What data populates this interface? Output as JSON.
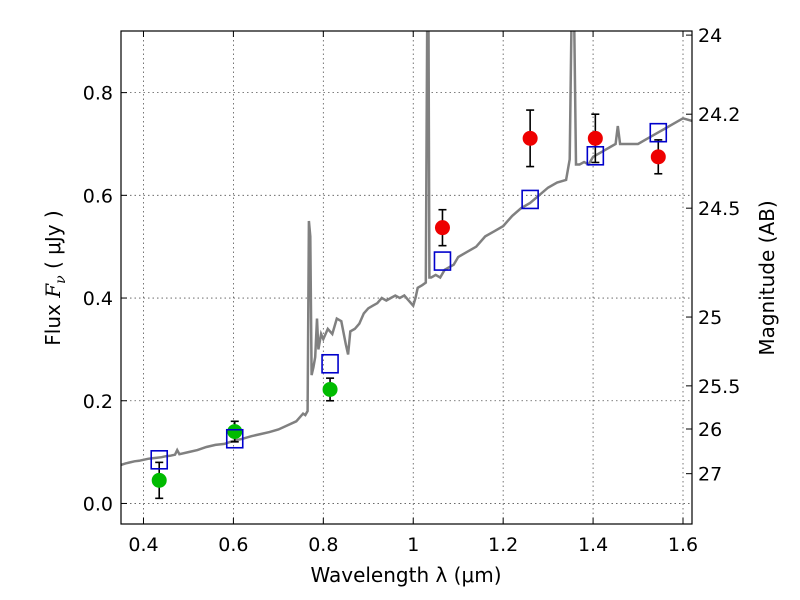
{
  "chart_data": {
    "type": "scatter",
    "xlabel": "Wavelength  λ (μm)",
    "ylabel_parts": [
      "Flux  ",
      "F",
      "ν",
      "  ( μJy )"
    ],
    "y2label": "Magnitude (AB)",
    "xlim": [
      0.35,
      1.62
    ],
    "ylim": [
      -0.04,
      0.92
    ],
    "grid": true,
    "x_ticks": [
      0.4,
      0.6,
      0.8,
      1.0,
      1.2,
      1.4,
      1.6
    ],
    "x_tick_labels": [
      "0.4",
      "0.6",
      "0.8",
      "1",
      "1.2",
      "1.4",
      "1.6"
    ],
    "y_ticks": [
      0.0,
      0.2,
      0.4,
      0.6,
      0.8
    ],
    "y_tick_labels": [
      "0.0",
      "0.2",
      "0.4",
      "0.6",
      "0.8"
    ],
    "mag_ticks": [
      {
        "label": "24",
        "flux": 0.912
      },
      {
        "label": "24.2",
        "flux": 0.758
      },
      {
        "label": "24.5",
        "flux": 0.575
      },
      {
        "label": "25",
        "flux": 0.363
      },
      {
        "label": "25.5",
        "flux": 0.229
      },
      {
        "label": "26",
        "flux": 0.145
      },
      {
        "label": "27",
        "flux": 0.058
      }
    ],
    "colors": {
      "model": "#808080",
      "box": "#0000cc",
      "green": "#00bb00",
      "red": "#ee0000",
      "errorbar": "#000000",
      "grid": "#555555"
    },
    "model_spectrum": [
      [
        0.35,
        0.075
      ],
      [
        0.36,
        0.078
      ],
      [
        0.37,
        0.08
      ],
      [
        0.38,
        0.082
      ],
      [
        0.39,
        0.083
      ],
      [
        0.4,
        0.085
      ],
      [
        0.41,
        0.087
      ],
      [
        0.42,
        0.088
      ],
      [
        0.43,
        0.089
      ],
      [
        0.44,
        0.09
      ],
      [
        0.45,
        0.092
      ],
      [
        0.46,
        0.093
      ],
      [
        0.47,
        0.095
      ],
      [
        0.475,
        0.104
      ],
      [
        0.48,
        0.096
      ],
      [
        0.5,
        0.1
      ],
      [
        0.52,
        0.104
      ],
      [
        0.54,
        0.11
      ],
      [
        0.56,
        0.114
      ],
      [
        0.58,
        0.116
      ],
      [
        0.6,
        0.122
      ],
      [
        0.62,
        0.126
      ],
      [
        0.64,
        0.131
      ],
      [
        0.66,
        0.135
      ],
      [
        0.68,
        0.139
      ],
      [
        0.7,
        0.144
      ],
      [
        0.72,
        0.152
      ],
      [
        0.74,
        0.16
      ],
      [
        0.75,
        0.17
      ],
      [
        0.755,
        0.175
      ],
      [
        0.76,
        0.172
      ],
      [
        0.765,
        0.18
      ],
      [
        0.768,
        0.55
      ],
      [
        0.771,
        0.52
      ],
      [
        0.774,
        0.25
      ],
      [
        0.778,
        0.265
      ],
      [
        0.782,
        0.285
      ],
      [
        0.786,
        0.36
      ],
      [
        0.789,
        0.3
      ],
      [
        0.795,
        0.33
      ],
      [
        0.8,
        0.32
      ],
      [
        0.81,
        0.34
      ],
      [
        0.82,
        0.33
      ],
      [
        0.83,
        0.36
      ],
      [
        0.84,
        0.355
      ],
      [
        0.85,
        0.31
      ],
      [
        0.855,
        0.29
      ],
      [
        0.86,
        0.335
      ],
      [
        0.87,
        0.34
      ],
      [
        0.88,
        0.35
      ],
      [
        0.89,
        0.37
      ],
      [
        0.9,
        0.38
      ],
      [
        0.91,
        0.385
      ],
      [
        0.92,
        0.39
      ],
      [
        0.93,
        0.4
      ],
      [
        0.94,
        0.395
      ],
      [
        0.95,
        0.4
      ],
      [
        0.96,
        0.405
      ],
      [
        0.97,
        0.4
      ],
      [
        0.98,
        0.405
      ],
      [
        0.99,
        0.395
      ],
      [
        1.0,
        0.385
      ],
      [
        1.005,
        0.4
      ],
      [
        1.01,
        0.42
      ],
      [
        1.02,
        0.425
      ],
      [
        1.028,
        0.43
      ],
      [
        1.031,
        0.94
      ],
      [
        1.034,
        0.94
      ],
      [
        1.036,
        0.44
      ],
      [
        1.04,
        0.44
      ],
      [
        1.05,
        0.445
      ],
      [
        1.06,
        0.44
      ],
      [
        1.07,
        0.455
      ],
      [
        1.08,
        0.46
      ],
      [
        1.09,
        0.465
      ],
      [
        1.1,
        0.48
      ],
      [
        1.12,
        0.49
      ],
      [
        1.14,
        0.5
      ],
      [
        1.16,
        0.52
      ],
      [
        1.18,
        0.53
      ],
      [
        1.2,
        0.54
      ],
      [
        1.22,
        0.56
      ],
      [
        1.24,
        0.575
      ],
      [
        1.26,
        0.585
      ],
      [
        1.28,
        0.6
      ],
      [
        1.3,
        0.615
      ],
      [
        1.32,
        0.625
      ],
      [
        1.34,
        0.63
      ],
      [
        1.348,
        0.67
      ],
      [
        1.352,
        0.94
      ],
      [
        1.358,
        0.94
      ],
      [
        1.362,
        0.66
      ],
      [
        1.37,
        0.66
      ],
      [
        1.38,
        0.665
      ],
      [
        1.39,
        0.66
      ],
      [
        1.4,
        0.675
      ],
      [
        1.42,
        0.685
      ],
      [
        1.44,
        0.695
      ],
      [
        1.45,
        0.7
      ],
      [
        1.455,
        0.735
      ],
      [
        1.46,
        0.7
      ],
      [
        1.48,
        0.7
      ],
      [
        1.5,
        0.7
      ],
      [
        1.52,
        0.71
      ],
      [
        1.54,
        0.72
      ],
      [
        1.56,
        0.73
      ],
      [
        1.58,
        0.74
      ],
      [
        1.6,
        0.75
      ],
      [
        1.62,
        0.745
      ]
    ],
    "model_boxes": [
      {
        "x": 0.435,
        "y": 0.085
      },
      {
        "x": 0.603,
        "y": 0.126
      },
      {
        "x": 0.815,
        "y": 0.272
      },
      {
        "x": 1.065,
        "y": 0.472
      },
      {
        "x": 1.26,
        "y": 0.592
      },
      {
        "x": 1.405,
        "y": 0.677
      },
      {
        "x": 1.545,
        "y": 0.722
      }
    ],
    "observed_points": [
      {
        "x": 0.435,
        "y": 0.045,
        "err": 0.035,
        "color": "green"
      },
      {
        "x": 0.603,
        "y": 0.14,
        "err": 0.02,
        "color": "green"
      },
      {
        "x": 0.815,
        "y": 0.222,
        "err": 0.022,
        "color": "green"
      },
      {
        "x": 1.065,
        "y": 0.537,
        "err": 0.035,
        "color": "red"
      },
      {
        "x": 1.26,
        "y": 0.711,
        "err": 0.055,
        "color": "red"
      },
      {
        "x": 1.405,
        "y": 0.711,
        "err": 0.047,
        "color": "red"
      },
      {
        "x": 1.545,
        "y": 0.675,
        "err": 0.033,
        "color": "red"
      }
    ]
  }
}
